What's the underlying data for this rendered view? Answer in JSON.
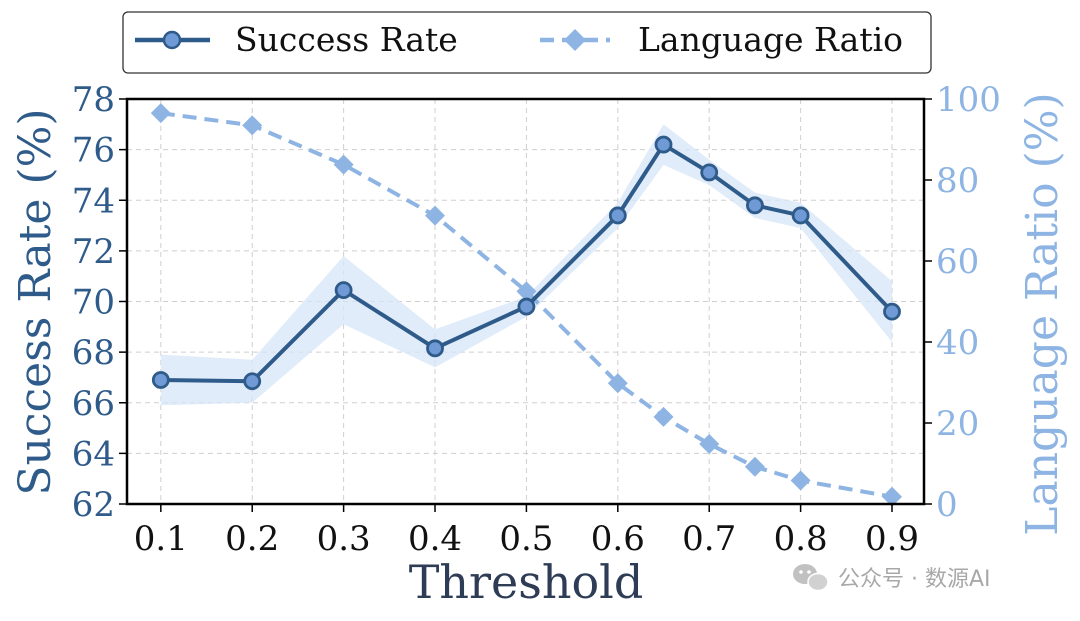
{
  "chart_data": {
    "type": "line",
    "xlabel": "Threshold",
    "ylabel_left": "Success Rate (%)",
    "ylabel_right": "Language Ratio (%)",
    "x": [
      0.1,
      0.2,
      0.3,
      0.4,
      0.5,
      0.6,
      0.65,
      0.7,
      0.75,
      0.8,
      0.9
    ],
    "x_ticks": [
      "0.1",
      "0.2",
      "0.3",
      "0.4",
      "0.5",
      "0.6",
      "0.7",
      "0.8",
      "0.9"
    ],
    "x_tick_values": [
      0.1,
      0.2,
      0.3,
      0.4,
      0.5,
      0.6,
      0.7,
      0.8,
      0.9
    ],
    "xlim": [
      0.063,
      0.935
    ],
    "ylim_left": [
      62,
      78
    ],
    "yticks_left": [
      "62",
      "64",
      "66",
      "68",
      "70",
      "72",
      "74",
      "76",
      "78"
    ],
    "ylim_right": [
      0,
      100
    ],
    "yticks_right": [
      "0",
      "20",
      "40",
      "60",
      "80",
      "100"
    ],
    "grid": true,
    "legend_position": "top-center",
    "series": [
      {
        "name": "Success Rate",
        "axis": "left",
        "values": [
          66.9,
          66.85,
          70.45,
          68.15,
          69.8,
          73.4,
          76.2,
          75.1,
          73.8,
          73.4,
          69.6
        ],
        "band_upper": [
          67.9,
          67.7,
          71.8,
          68.9,
          70.2,
          73.9,
          77.0,
          75.6,
          74.3,
          73.9,
          70.8
        ],
        "band_lower": [
          65.9,
          66.0,
          69.1,
          67.4,
          69.4,
          72.9,
          75.4,
          74.6,
          73.3,
          72.9,
          68.4
        ],
        "color": "#2f5b8a",
        "marker": "circle",
        "line_style": "solid"
      },
      {
        "name": "Language Ratio",
        "axis": "right",
        "values": [
          96.5,
          93.5,
          83.8,
          71.2,
          52.5,
          29.8,
          21.5,
          14.8,
          9.2,
          5.8,
          1.8
        ],
        "color": "#8db4e2",
        "marker": "diamond",
        "line_style": "dashed"
      }
    ],
    "band_color": "#d6e6f7"
  },
  "watermark": "公众号 · 数源AI"
}
